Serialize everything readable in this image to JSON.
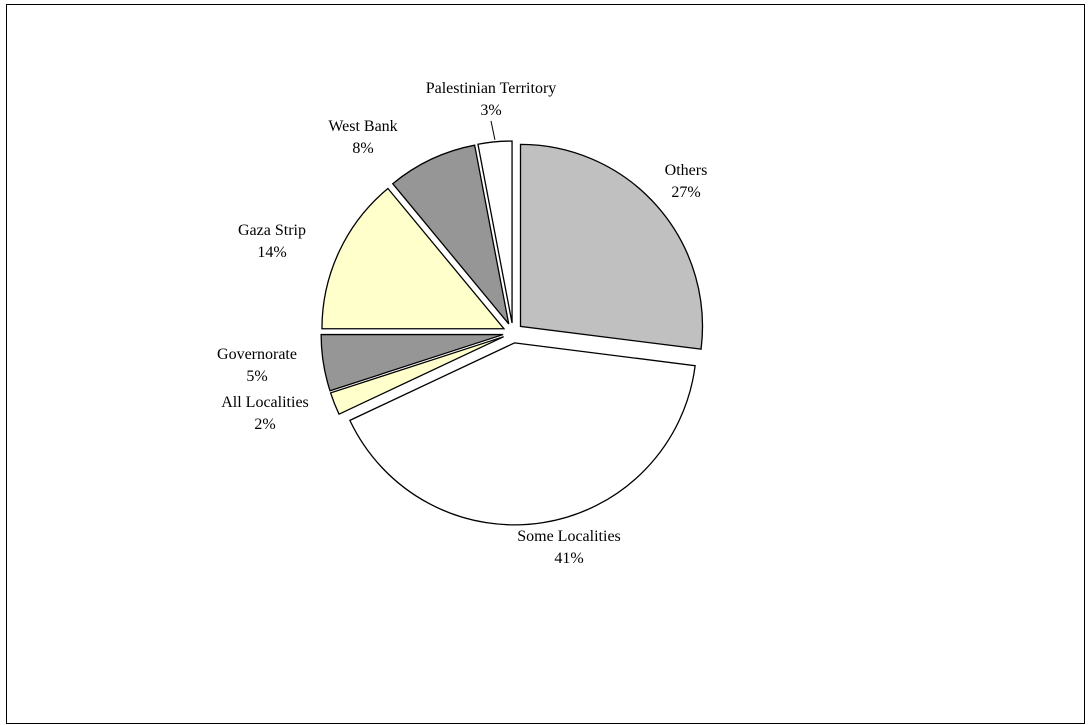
{
  "chart_data": {
    "type": "pie",
    "title": "",
    "slices": [
      {
        "label": "Others",
        "value_label": "27%",
        "value": 27,
        "color": "#c0c0c0"
      },
      {
        "label": "Some Localities",
        "value_label": "41%",
        "value": 41,
        "color": "#ffffff"
      },
      {
        "label": "All Localities",
        "value_label": "2%",
        "value": 2,
        "color": "#ffffcc"
      },
      {
        "label": "Governorate",
        "value_label": "5%",
        "value": 5,
        "color": "#969696"
      },
      {
        "label": "Gaza Strip",
        "value_label": "14%",
        "value": 14,
        "color": "#ffffcc"
      },
      {
        "label": "West Bank",
        "value_label": "8%",
        "value": 8,
        "color": "#969696"
      },
      {
        "label": "Palestinian Territory",
        "value_label": "3%",
        "value": 3,
        "color": "#ffffff"
      }
    ],
    "exploded": true,
    "legend": "none"
  }
}
